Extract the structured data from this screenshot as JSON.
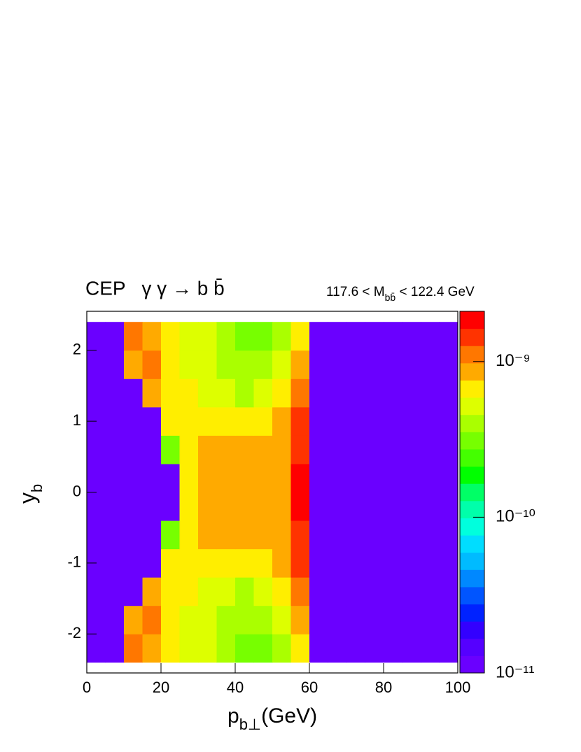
{
  "chart_data": {
    "type": "contour",
    "title": "CEP   γ γ → b b̄",
    "annotation": {
      "text": "117.6 < M",
      "sub": "bb̄",
      "rest": " < 122.4 GeV"
    },
    "xlabel": {
      "text": "p",
      "sub": "b⊥",
      "rest": "(GeV)"
    },
    "ylabel": {
      "text": "y",
      "sub": "b"
    },
    "xlim": [
      0,
      100
    ],
    "xticks": [
      0,
      20,
      40,
      60,
      80,
      100
    ],
    "ylim": [
      -2.55,
      2.55
    ],
    "yticks": [
      -2,
      -1,
      0,
      1,
      2
    ],
    "zlim": [
      1e-11,
      2.1e-09
    ],
    "zlog": true,
    "zticks": [
      {
        "value": 1e-11,
        "label": "10⁻¹¹"
      },
      {
        "value": 1e-10,
        "label": "10⁻¹⁰"
      },
      {
        "value": 1e-09,
        "label": "10⁻⁹"
      }
    ],
    "palette": [
      "#6a00ff",
      "#5500ff",
      "#3300ff",
      "#0022ff",
      "#0055ff",
      "#0088ff",
      "#00bbff",
      "#00ddff",
      "#00ffdd",
      "#00ffaa",
      "#00ff66",
      "#00ff00",
      "#44ff00",
      "#77ff00",
      "#aaff00",
      "#ddff00",
      "#ffee00",
      "#ffaa00",
      "#ff7700",
      "#ff3300",
      "#ff0000"
    ],
    "xbins": [
      0,
      5,
      10,
      15,
      20,
      25,
      30,
      35,
      40,
      45,
      50,
      55,
      60,
      65,
      70,
      75,
      80,
      85,
      90,
      95,
      100
    ],
    "ybins": [
      -2.4,
      -2.0,
      -1.6,
      -1.2,
      -0.8,
      -0.4,
      0,
      0.4,
      0.8,
      1.2,
      1.6,
      2.0,
      2.4
    ],
    "z": [
      [
        1e-11,
        1e-11,
        1.1e-09,
        8e-10,
        6e-10,
        4.7e-10,
        4.7e-10,
        3.6e-10,
        2.8e-10,
        2.8e-10,
        3.6e-10,
        6e-10,
        1e-11,
        1e-11,
        1e-11,
        1e-11,
        1e-11,
        1e-11,
        1e-11,
        1e-11
      ],
      [
        1e-11,
        1e-11,
        8e-10,
        1.1e-09,
        6e-10,
        4.7e-10,
        4.7e-10,
        3.6e-10,
        3.6e-10,
        3.6e-10,
        4.7e-10,
        8e-10,
        1e-11,
        1e-11,
        1e-11,
        1e-11,
        1e-11,
        1e-11,
        1e-11,
        1e-11
      ],
      [
        1e-11,
        1e-11,
        1e-11,
        8e-10,
        6e-10,
        6e-10,
        4.7e-10,
        4.7e-10,
        3.6e-10,
        4.7e-10,
        6e-10,
        1.1e-09,
        1e-11,
        1e-11,
        1e-11,
        1e-11,
        1e-11,
        1e-11,
        1e-11,
        1e-11
      ],
      [
        1e-11,
        1e-11,
        1e-11,
        1e-11,
        6e-10,
        6e-10,
        6e-10,
        6e-10,
        6e-10,
        6e-10,
        8e-10,
        1.4e-09,
        1e-11,
        1e-11,
        1e-11,
        1e-11,
        1e-11,
        1e-11,
        1e-11,
        1e-11
      ],
      [
        1e-11,
        1e-11,
        1e-11,
        1e-11,
        3e-10,
        6e-10,
        8e-10,
        8e-10,
        8e-10,
        8e-10,
        8e-10,
        1.4e-09,
        1e-11,
        1e-11,
        1e-11,
        1e-11,
        1e-11,
        1e-11,
        1e-11,
        1e-11
      ],
      [
        1e-11,
        1e-11,
        1e-11,
        1e-11,
        1e-11,
        6e-10,
        8e-10,
        8e-10,
        8e-10,
        8e-10,
        8e-10,
        1.85e-09,
        1e-11,
        1e-11,
        1e-11,
        1e-11,
        1e-11,
        1e-11,
        1e-11,
        1e-11
      ],
      [
        1e-11,
        1e-11,
        1e-11,
        1e-11,
        1e-11,
        6e-10,
        8e-10,
        8e-10,
        8e-10,
        8e-10,
        8e-10,
        1.85e-09,
        1e-11,
        1e-11,
        1e-11,
        1e-11,
        1e-11,
        1e-11,
        1e-11,
        1e-11
      ],
      [
        1e-11,
        1e-11,
        1e-11,
        1e-11,
        3e-10,
        6e-10,
        8e-10,
        8e-10,
        8e-10,
        8e-10,
        8e-10,
        1.4e-09,
        1e-11,
        1e-11,
        1e-11,
        1e-11,
        1e-11,
        1e-11,
        1e-11,
        1e-11
      ],
      [
        1e-11,
        1e-11,
        1e-11,
        1e-11,
        6e-10,
        6e-10,
        6e-10,
        6e-10,
        6e-10,
        6e-10,
        8e-10,
        1.4e-09,
        1e-11,
        1e-11,
        1e-11,
        1e-11,
        1e-11,
        1e-11,
        1e-11,
        1e-11
      ],
      [
        1e-11,
        1e-11,
        1e-11,
        8e-10,
        6e-10,
        6e-10,
        4.7e-10,
        4.7e-10,
        3.6e-10,
        4.7e-10,
        6e-10,
        1.1e-09,
        1e-11,
        1e-11,
        1e-11,
        1e-11,
        1e-11,
        1e-11,
        1e-11,
        1e-11
      ],
      [
        1e-11,
        1e-11,
        8e-10,
        1.1e-09,
        6e-10,
        4.7e-10,
        4.7e-10,
        3.6e-10,
        3.6e-10,
        3.6e-10,
        4.7e-10,
        8e-10,
        1e-11,
        1e-11,
        1e-11,
        1e-11,
        1e-11,
        1e-11,
        1e-11,
        1e-11
      ],
      [
        1e-11,
        1e-11,
        1.1e-09,
        8e-10,
        6e-10,
        4.7e-10,
        4.7e-10,
        3.6e-10,
        2.8e-10,
        2.8e-10,
        3.6e-10,
        6e-10,
        1e-11,
        1e-11,
        1e-11,
        1e-11,
        1e-11,
        1e-11,
        1e-11,
        1e-11
      ]
    ]
  }
}
